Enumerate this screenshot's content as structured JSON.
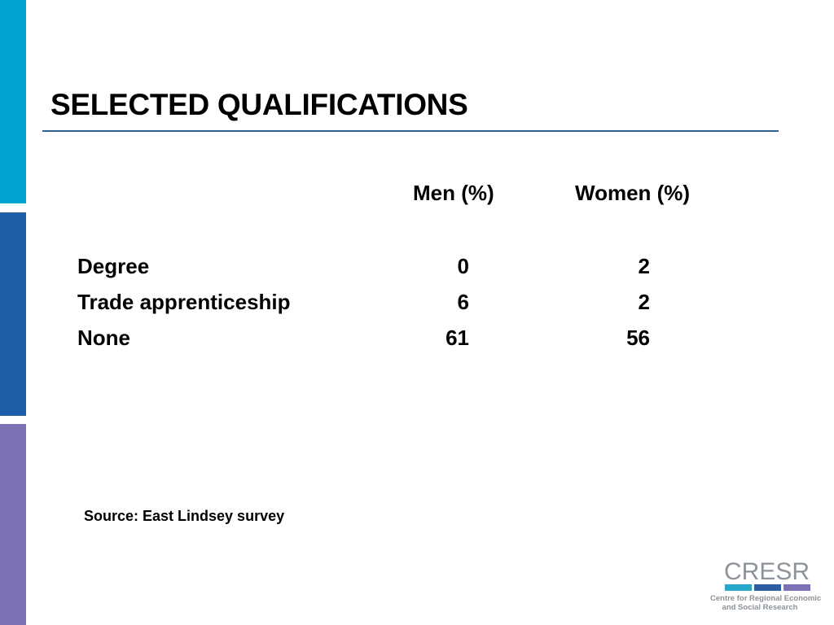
{
  "slide": {
    "title": "SELECTED QUALIFICATIONS",
    "accent_colors": [
      "#00a5cf",
      "#1f5ea8",
      "#7b72b6"
    ]
  },
  "table": {
    "columns": [
      "Men (%)",
      "Women (%)"
    ],
    "rows": [
      {
        "label": "Degree",
        "men": "0",
        "women": "2"
      },
      {
        "label": "Trade apprenticeship",
        "men": "6",
        "women": "2"
      },
      {
        "label": "None",
        "men": "61",
        "women": "56"
      }
    ]
  },
  "source": "Source: East Lindsey survey",
  "logo": {
    "wordmark": "CRESR",
    "line1": "Centre for Regional Economic",
    "line2": "and Social Research"
  }
}
